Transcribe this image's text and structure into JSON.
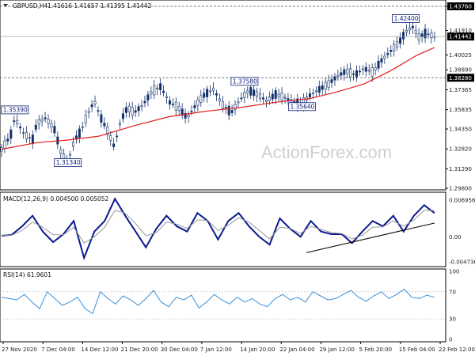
{
  "chart_data": {
    "type": "line",
    "header": {
      "symbol": "GBPUSD,H4",
      "ohlc": "1.41616 1.41657 1.41395 1.41442"
    },
    "watermark": "ActionForex.com",
    "x_ticks": [
      "27 Nov 2020",
      "7 Dec 04:00",
      "14 Dec 12:00",
      "21 Dec 20:00",
      "30 Dec 04:00",
      "7 Jan 12:00",
      "14 Jan 20:00",
      "22 Jan 04:00",
      "29 Jan 12:00",
      "5 Feb 20:00",
      "15 Feb 04:00",
      "22 Feb 12:00"
    ],
    "price_panel": {
      "y_ticks": [
        "1.43760",
        "1.41910",
        "1.40025",
        "1.38890",
        "1.37365",
        "1.35835",
        "1.34350",
        "1.32820",
        "1.31290",
        "1.29800"
      ],
      "ylim": [
        1.298,
        1.4376
      ],
      "current_price": "1.41442",
      "current_value": 1.41442,
      "levels": [
        {
          "label": "1.43760",
          "value": 1.4376,
          "style": "dashed"
        },
        {
          "label": "1.38280",
          "value": 1.3828,
          "style": "dashed"
        }
      ],
      "price_labels": [
        {
          "text": "1.35390",
          "value": 1.3539,
          "t": 0.03
        },
        {
          "text": "1.31340",
          "value": 1.3134,
          "t": 0.15
        },
        {
          "text": "1.37580",
          "value": 1.3758,
          "t": 0.55
        },
        {
          "text": "1.35640",
          "value": 1.3564,
          "t": 0.68
        },
        {
          "text": "1.42400",
          "value": 1.424,
          "t": 0.915
        }
      ],
      "series": [
        {
          "type": "candlestick",
          "path": [
            [
              0,
              1.328
            ],
            [
              0.02,
              1.338
            ],
            [
              0.03,
              1.352
            ],
            [
              0.05,
              1.34
            ],
            [
              0.07,
              1.335
            ],
            [
              0.08,
              1.348
            ],
            [
              0.1,
              1.352
            ],
            [
              0.12,
              1.343
            ],
            [
              0.135,
              1.325
            ],
            [
              0.15,
              1.318
            ],
            [
              0.165,
              1.335
            ],
            [
              0.18,
              1.342
            ],
            [
              0.195,
              1.355
            ],
            [
              0.21,
              1.365
            ],
            [
              0.225,
              1.352
            ],
            [
              0.24,
              1.342
            ],
            [
              0.255,
              1.33
            ],
            [
              0.27,
              1.35
            ],
            [
              0.285,
              1.36
            ],
            [
              0.3,
              1.356
            ],
            [
              0.32,
              1.362
            ],
            [
              0.34,
              1.372
            ],
            [
              0.36,
              1.376
            ],
            [
              0.38,
              1.364
            ],
            [
              0.4,
              1.36
            ],
            [
              0.42,
              1.352
            ],
            [
              0.44,
              1.362
            ],
            [
              0.46,
              1.37
            ],
            [
              0.48,
              1.374
            ],
            [
              0.5,
              1.362
            ],
            [
              0.52,
              1.356
            ],
            [
              0.54,
              1.366
            ],
            [
              0.56,
              1.373
            ],
            [
              0.58,
              1.37
            ],
            [
              0.6,
              1.365
            ],
            [
              0.62,
              1.37
            ],
            [
              0.64,
              1.368
            ],
            [
              0.66,
              1.364
            ],
            [
              0.68,
              1.363
            ],
            [
              0.7,
              1.37
            ],
            [
              0.72,
              1.374
            ],
            [
              0.74,
              1.378
            ],
            [
              0.76,
              1.384
            ],
            [
              0.78,
              1.388
            ],
            [
              0.8,
              1.385
            ],
            [
              0.82,
              1.39
            ],
            [
              0.84,
              1.387
            ],
            [
              0.86,
              1.396
            ],
            [
              0.88,
              1.403
            ],
            [
              0.9,
              1.41
            ],
            [
              0.915,
              1.418
            ],
            [
              0.93,
              1.422
            ],
            [
              0.945,
              1.414
            ],
            [
              0.96,
              1.417
            ],
            [
              0.98,
              1.4144
            ]
          ]
        },
        {
          "type": "moving average",
          "color": "#e11d1d",
          "path": [
            [
              0,
              1.328
            ],
            [
              0.08,
              1.333
            ],
            [
              0.15,
              1.335
            ],
            [
              0.22,
              1.338
            ],
            [
              0.3,
              1.346
            ],
            [
              0.38,
              1.353
            ],
            [
              0.46,
              1.357
            ],
            [
              0.54,
              1.36
            ],
            [
              0.62,
              1.364
            ],
            [
              0.7,
              1.367
            ],
            [
              0.76,
              1.372
            ],
            [
              0.82,
              1.378
            ],
            [
              0.88,
              1.388
            ],
            [
              0.94,
              1.4
            ],
            [
              0.98,
              1.406
            ]
          ]
        }
      ]
    },
    "macd_panel": {
      "label": "MACD(12,26,9) 0.004500 0.005052",
      "y_ticks": [
        "0.006956",
        "0.00",
        "-0.004736"
      ],
      "ylim": [
        -0.0052,
        0.0074
      ],
      "series": [
        {
          "name": "MACD",
          "color": "#0a1a8c",
          "values": [
            0.0002,
            0.0004,
            0.002,
            0.004,
            0.001,
            -0.001,
            0.0005,
            0.003,
            -0.004,
            0.001,
            0.003,
            0.0072,
            0.004,
            0.001,
            -0.002,
            0.0015,
            0.004,
            0.002,
            0.001,
            0.0045,
            0.003,
            -0.0005,
            0.003,
            0.0045,
            0.002,
            0.0,
            -0.0015,
            0.0035,
            0.0015,
            0.0,
            0.003,
            0.001,
            0.0005,
            0.0005,
            -0.0012,
            0.001,
            0.003,
            0.002,
            0.004,
            0.001,
            0.004,
            0.006,
            0.0045
          ]
        },
        {
          "name": "Signal",
          "color": "#9a9a9a",
          "values": [
            0.0003,
            0.0003,
            0.0012,
            0.0028,
            0.0018,
            0.0004,
            0.0004,
            0.0018,
            -0.0012,
            0.0,
            0.0018,
            0.005,
            0.0045,
            0.0025,
            0.0002,
            0.0008,
            0.0028,
            0.0024,
            0.0016,
            0.0032,
            0.0031,
            0.0012,
            0.0022,
            0.0036,
            0.0028,
            0.0012,
            -0.0004,
            0.0018,
            0.0016,
            0.0006,
            0.002,
            0.0014,
            0.0008,
            0.0006,
            -0.0004,
            0.0003,
            0.0018,
            0.0019,
            0.003,
            0.002,
            0.0032,
            0.005,
            0.005
          ]
        }
      ],
      "trendline": [
        [
          0.69,
          -0.003
        ],
        [
          0.98,
          0.0026
        ]
      ]
    },
    "rsi_panel": {
      "label": "RSI(14) 61.9601",
      "y_ticks": [
        "100",
        "70",
        "30",
        "0"
      ],
      "ylim": [
        0,
        100
      ],
      "levels": [
        70,
        30
      ],
      "series": [
        {
          "name": "RSI",
          "color": "#3a8fd8",
          "values": [
            62,
            60,
            58,
            66,
            55,
            45,
            70,
            60,
            50,
            55,
            62,
            45,
            38,
            70,
            60,
            52,
            64,
            58,
            50,
            60,
            72,
            55,
            48,
            62,
            58,
            65,
            46,
            55,
            66,
            58,
            52,
            62,
            55,
            60,
            52,
            48,
            60,
            66,
            58,
            62,
            55,
            70,
            64,
            58,
            60,
            66,
            72,
            62,
            56,
            64,
            70,
            60,
            66,
            74,
            62,
            60,
            65,
            62
          ]
        }
      ]
    }
  }
}
